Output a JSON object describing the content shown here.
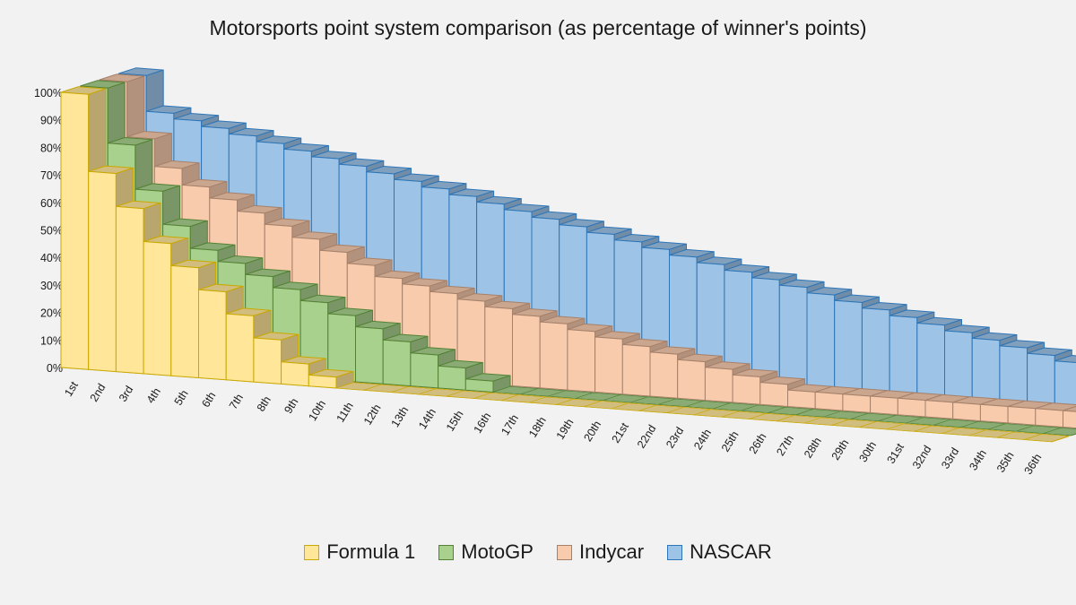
{
  "chart_data": {
    "type": "bar",
    "subtype": "3d-stepped-area",
    "title": "Motorsports point system comparison (as percentage of winner's points)",
    "xlabel": "",
    "ylabel": "",
    "ylim": [
      0,
      100
    ],
    "yticks": [
      "0%",
      "10%",
      "20%",
      "30%",
      "40%",
      "50%",
      "60%",
      "70%",
      "80%",
      "90%",
      "100%"
    ],
    "categories": [
      "1st",
      "2nd",
      "3rd",
      "4th",
      "5th",
      "6th",
      "7th",
      "8th",
      "9th",
      "10th",
      "11th",
      "12th",
      "13th",
      "14th",
      "15th",
      "16th",
      "17th",
      "18th",
      "19th",
      "20th",
      "21st",
      "22nd",
      "23rd",
      "24th",
      "25th",
      "26th",
      "27th",
      "28th",
      "29th",
      "30th",
      "31st",
      "32nd",
      "33rd",
      "34th",
      "35th",
      "36th"
    ],
    "series": [
      {
        "name": "Formula 1",
        "color": "#ffe699",
        "edge": "#c9a800",
        "values": [
          100,
          72,
          60,
          48,
          40,
          32,
          24,
          16,
          8,
          4,
          0,
          0,
          0,
          0,
          0,
          0,
          0,
          0,
          0,
          0,
          0,
          0,
          0,
          0,
          0,
          0,
          0,
          0,
          0,
          0,
          0,
          0,
          0,
          0,
          0,
          0
        ]
      },
      {
        "name": "MotoGP",
        "color": "#a9d18e",
        "edge": "#548235",
        "values": [
          100,
          80,
          64,
          52,
          44,
          40,
          36,
          32,
          28,
          24,
          20,
          16,
          12,
          8,
          4,
          0,
          0,
          0,
          0,
          0,
          0,
          0,
          0,
          0,
          0,
          0,
          0,
          0,
          0,
          0,
          0,
          0,
          0,
          0,
          0,
          0
        ]
      },
      {
        "name": "Indycar",
        "color": "#f8cbad",
        "edge": "#a5806a",
        "values": [
          100,
          80,
          70,
          64,
          60,
          56,
          52,
          48,
          44,
          40,
          36,
          34,
          32,
          30,
          28,
          26,
          24,
          22,
          20,
          18,
          16,
          14,
          12,
          10,
          8,
          6,
          6,
          6,
          6,
          6,
          6,
          6,
          6,
          6,
          6,
          6
        ]
      },
      {
        "name": "NASCAR",
        "color": "#9dc3e6",
        "edge": "#2e75b6",
        "values": [
          100,
          87,
          85,
          83,
          81,
          79,
          77,
          75,
          73,
          71,
          69,
          67,
          65,
          63,
          61,
          59,
          57,
          55,
          53,
          51,
          49,
          47,
          45,
          43,
          41,
          39,
          37,
          35,
          33,
          31,
          29,
          27,
          25,
          23,
          21,
          19
        ]
      }
    ],
    "legend": "bottom"
  }
}
